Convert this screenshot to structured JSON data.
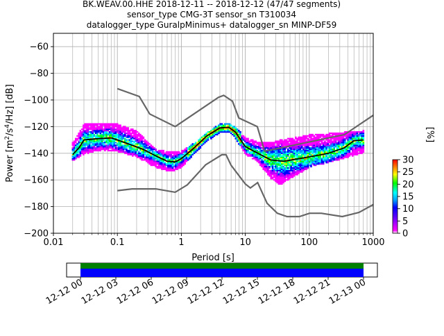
{
  "chart_data": {
    "type": "heatmap",
    "title_lines": [
      "BK.WEAV.00.HHE   2018-12-11 -- 2018-12-12  (47/47 segments)",
      "sensor_type CMG-3T sensor_sn T310034",
      "datalogger_type GuralpMinimus+ datalogger_sn MINP-DF59"
    ],
    "xlabel": "Period [s]",
    "ylabel_main": "Power [m",
    "ylabel_sup1": "2",
    "ylabel_mid": "/s",
    "ylabel_sup2": "4",
    "ylabel_end": "/Hz] [dB]",
    "x_scale": "log",
    "xlim": [
      0.01,
      1000
    ],
    "ylim": [
      -200,
      -50
    ],
    "grid": true,
    "x_ticks": [
      {
        "value": 0.01,
        "label": "0.01"
      },
      {
        "value": 0.1,
        "label": "0.1"
      },
      {
        "value": 1,
        "label": "1"
      },
      {
        "value": 10,
        "label": "10"
      },
      {
        "value": 100,
        "label": "100"
      },
      {
        "value": 1000,
        "label": "1000"
      }
    ],
    "y_ticks": [
      {
        "value": -60,
        "label": "−60"
      },
      {
        "value": -80,
        "label": "−80"
      },
      {
        "value": -100,
        "label": "−100"
      },
      {
        "value": -120,
        "label": "−120"
      },
      {
        "value": -140,
        "label": "−140"
      },
      {
        "value": -160,
        "label": "−160"
      },
      {
        "value": -180,
        "label": "−180"
      },
      {
        "value": -200,
        "label": "−200"
      }
    ],
    "colorbar": {
      "label": "[%]",
      "range": [
        0,
        30
      ],
      "ticks": [
        {
          "value": 0,
          "label": "0"
        },
        {
          "value": 5,
          "label": "5"
        },
        {
          "value": 10,
          "label": "10"
        },
        {
          "value": 15,
          "label": "15"
        },
        {
          "value": 20,
          "label": "20"
        },
        {
          "value": 25,
          "label": "25"
        },
        {
          "value": 30,
          "label": "30"
        }
      ],
      "colors": [
        "#ffffff",
        "#ff00ff",
        "#0000ff",
        "#00ffff",
        "#00ff00",
        "#ffff00",
        "#ff7f00",
        "#ff0000"
      ]
    },
    "high_noise_model": [
      {
        "period": 0.1,
        "db": -91.5
      },
      {
        "period": 0.22,
        "db": -97.4
      },
      {
        "period": 0.32,
        "db": -110.5
      },
      {
        "period": 0.8,
        "db": -120.0
      },
      {
        "period": 3.8,
        "db": -98.0
      },
      {
        "period": 4.6,
        "db": -96.5
      },
      {
        "period": 6.3,
        "db": -101.0
      },
      {
        "period": 7.9,
        "db": -113.5
      },
      {
        "period": 15.4,
        "db": -120.0
      },
      {
        "period": 20,
        "db": -138.5
      },
      {
        "period": 354.8,
        "db": -126.0
      },
      {
        "period": 1000,
        "db": -111.5
      }
    ],
    "low_noise_model": [
      {
        "period": 0.1,
        "db": -168.0
      },
      {
        "period": 0.17,
        "db": -166.7
      },
      {
        "period": 0.4,
        "db": -166.7
      },
      {
        "period": 0.8,
        "db": -169.2
      },
      {
        "period": 1.24,
        "db": -163.7
      },
      {
        "period": 2.4,
        "db": -148.6
      },
      {
        "period": 4.3,
        "db": -141.1
      },
      {
        "period": 5.0,
        "db": -141.1
      },
      {
        "period": 6.0,
        "db": -149.0
      },
      {
        "period": 10.0,
        "db": -163.0
      },
      {
        "period": 12.0,
        "db": -166.0
      },
      {
        "period": 15.6,
        "db": -162.0
      },
      {
        "period": 21.9,
        "db": -177.5
      },
      {
        "period": 31.6,
        "db": -185.0
      },
      {
        "period": 45,
        "db": -187.5
      },
      {
        "period": 70,
        "db": -187.5
      },
      {
        "period": 101,
        "db": -185.0
      },
      {
        "period": 154,
        "db": -185.0
      },
      {
        "period": 328,
        "db": -187.5
      },
      {
        "period": 600,
        "db": -184.4
      },
      {
        "period": 1000,
        "db": -178.5
      }
    ],
    "mean_psd": [
      {
        "period": 0.02,
        "db": -141.0
      },
      {
        "period": 0.025,
        "db": -136.0
      },
      {
        "period": 0.03,
        "db": -130.0
      },
      {
        "period": 0.05,
        "db": -129.0
      },
      {
        "period": 0.08,
        "db": -128.5
      },
      {
        "period": 0.1,
        "db": -130.0
      },
      {
        "period": 0.15,
        "db": -133.0
      },
      {
        "period": 0.25,
        "db": -137.0
      },
      {
        "period": 0.4,
        "db": -142.0
      },
      {
        "period": 0.6,
        "db": -146.0
      },
      {
        "period": 0.8,
        "db": -146.5
      },
      {
        "period": 1.0,
        "db": -144.0
      },
      {
        "period": 1.5,
        "db": -137.0
      },
      {
        "period": 2.5,
        "db": -127.0
      },
      {
        "period": 4.0,
        "db": -121.0
      },
      {
        "period": 5.5,
        "db": -120.5
      },
      {
        "period": 7.0,
        "db": -124.0
      },
      {
        "period": 10.0,
        "db": -135.0
      },
      {
        "period": 15.0,
        "db": -139.5
      },
      {
        "period": 25.0,
        "db": -145.0
      },
      {
        "period": 40.0,
        "db": -146.0
      },
      {
        "period": 70.0,
        "db": -144.0
      },
      {
        "period": 120.0,
        "db": -142.0
      },
      {
        "period": 200.0,
        "db": -140.0
      },
      {
        "period": 350.0,
        "db": -136.0
      },
      {
        "period": 500.0,
        "db": -130.5
      },
      {
        "period": 700.0,
        "db": -130.0
      }
    ],
    "psd_spread": [
      {
        "period": 0.02,
        "lo": -145,
        "hi": -132
      },
      {
        "period": 0.03,
        "lo": -140,
        "hi": -118
      },
      {
        "period": 0.05,
        "lo": -137,
        "hi": -117
      },
      {
        "period": 0.1,
        "lo": -138,
        "hi": -118
      },
      {
        "period": 0.2,
        "lo": -142,
        "hi": -123
      },
      {
        "period": 0.4,
        "lo": -150,
        "hi": -137
      },
      {
        "period": 0.7,
        "lo": -153,
        "hi": -139
      },
      {
        "period": 1.0,
        "lo": -150,
        "hi": -138
      },
      {
        "period": 1.5,
        "lo": -141,
        "hi": -133
      },
      {
        "period": 2.5,
        "lo": -130,
        "hi": -124
      },
      {
        "period": 4.0,
        "lo": -124,
        "hi": -118
      },
      {
        "period": 5.5,
        "lo": -123,
        "hi": -117
      },
      {
        "period": 7.0,
        "lo": -128,
        "hi": -120
      },
      {
        "period": 10.0,
        "lo": -140,
        "hi": -128
      },
      {
        "period": 15.0,
        "lo": -145,
        "hi": -131
      },
      {
        "period": 25.0,
        "lo": -158,
        "hi": -132
      },
      {
        "period": 35.0,
        "lo": -163,
        "hi": -130
      },
      {
        "period": 60.0,
        "lo": -156,
        "hi": -128
      },
      {
        "period": 100.0,
        "lo": -150,
        "hi": -126
      },
      {
        "period": 200.0,
        "lo": -146,
        "hi": -125
      },
      {
        "period": 350.0,
        "lo": -143,
        "hi": -124
      },
      {
        "period": 700.0,
        "lo": -139,
        "hi": -123
      }
    ],
    "timeline": {
      "tick_labels": [
        "12-12 00",
        "12-12 03",
        "12-12 06",
        "12-12 09",
        "12-12 12",
        "12-12 15",
        "12-12 18",
        "12-12 21",
        "12-13 00"
      ],
      "coverage_fraction": [
        0.0,
        1.0
      ],
      "bar_colors": {
        "data": "#0000ff",
        "processed": "#008000"
      }
    }
  }
}
